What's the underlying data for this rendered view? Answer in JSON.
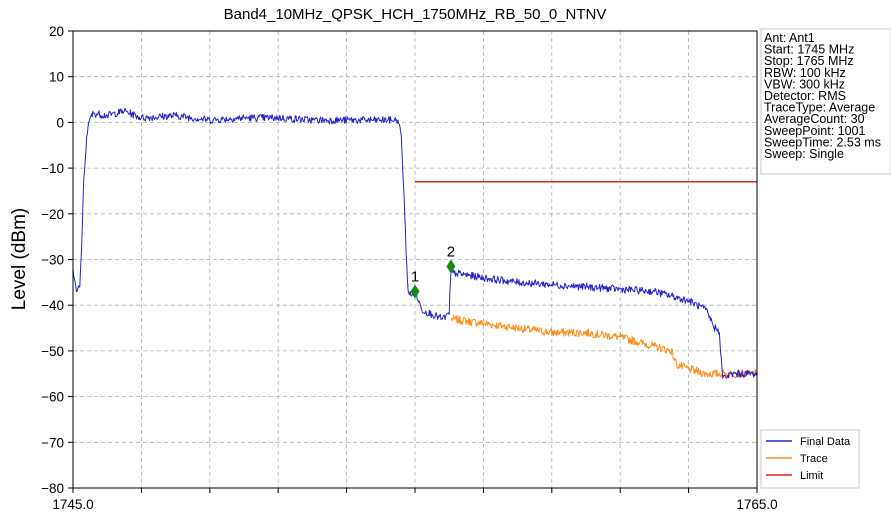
{
  "chart_data": {
    "type": "line",
    "title": "Band4_10MHz_QPSK_HCH_1750MHz_RB_50_0_NTNV",
    "xlabel": "",
    "ylabel": "Level (dBm)",
    "xlim": [
      1745,
      1765
    ],
    "ylim": [
      -80,
      20
    ],
    "x_tick_labels": [
      "1745.0",
      "1765.0"
    ],
    "y_ticks": [
      20,
      10,
      0,
      -10,
      -20,
      -30,
      -40,
      -50,
      -60,
      -70,
      -80
    ],
    "y_tick_labels": [
      "20",
      "10",
      "0",
      "−10",
      "−20",
      "−30",
      "−40",
      "−50",
      "−60",
      "−70",
      "−80"
    ],
    "grid": true,
    "legend_position": "bottom-right, outside plot",
    "colors": {
      "final": "#2222cc",
      "trace": "#ff8c1a",
      "limit": "#dd2222",
      "marker": "#128a12"
    },
    "series": [
      {
        "name": "Final Data",
        "x": [
          1745.0,
          1745.1,
          1745.2,
          1745.25,
          1745.3,
          1745.4,
          1745.5,
          1745.6,
          1746.0,
          1746.5,
          1747.0,
          1748.0,
          1749.0,
          1750.0,
          1751.0,
          1752.0,
          1753.0,
          1754.0,
          1754.4,
          1754.5,
          1754.6,
          1754.7,
          1754.75,
          1754.8,
          1754.9,
          1755.0,
          1755.2,
          1755.5,
          1755.8,
          1756.0,
          1756.02,
          1756.05,
          1756.2,
          1757.0,
          1758.0,
          1759.0,
          1760.0,
          1761.0,
          1762.0,
          1763.0,
          1763.5,
          1763.7,
          1763.75,
          1763.8,
          1763.9,
          1764.0,
          1764.3,
          1765.0
        ],
        "y": [
          -32,
          -37,
          -36,
          -28,
          -15,
          -3,
          1,
          2,
          1.5,
          2.5,
          1,
          1.5,
          0.5,
          1,
          1,
          0.5,
          0.5,
          0.5,
          0.5,
          0.5,
          -3,
          -20,
          -30,
          -37,
          -38,
          -37,
          -41,
          -42,
          -43,
          -42,
          -37,
          -33,
          -33,
          -34,
          -35,
          -35.5,
          -36,
          -36.5,
          -37,
          -39,
          -41,
          -44,
          -45,
          -45,
          -46,
          -56,
          -55,
          -55
        ]
      },
      {
        "name": "Trace",
        "x": [
          1756.05,
          1757.0,
          1758.0,
          1759.0,
          1760.0,
          1761.0,
          1761.5,
          1762.0,
          1762.5,
          1762.65,
          1763.0,
          1763.5,
          1764.0,
          1765.0
        ],
        "y": [
          -43,
          -44,
          -45,
          -46,
          -46,
          -47,
          -48,
          -49,
          -50,
          -53,
          -54,
          -55,
          -55,
          -55
        ]
      },
      {
        "name": "Limit",
        "x": [
          1755.0,
          1765.0
        ],
        "y": [
          -13,
          -13
        ]
      }
    ],
    "markers": [
      {
        "label": "1",
        "x": 1755.0,
        "y": -37
      },
      {
        "label": "2",
        "x": 1756.05,
        "y": -31.5
      }
    ],
    "info_box": [
      "Ant: Ant1",
      "Start: 1745 MHz",
      "Stop: 1765 MHz",
      "RBW: 100 kHz",
      "VBW: 300 kHz",
      "Detector: RMS",
      "TraceType: Average",
      "AverageCount: 30",
      "SweepPoint: 1001",
      "SweepTime: 2.53 ms",
      "Sweep: Single"
    ]
  }
}
